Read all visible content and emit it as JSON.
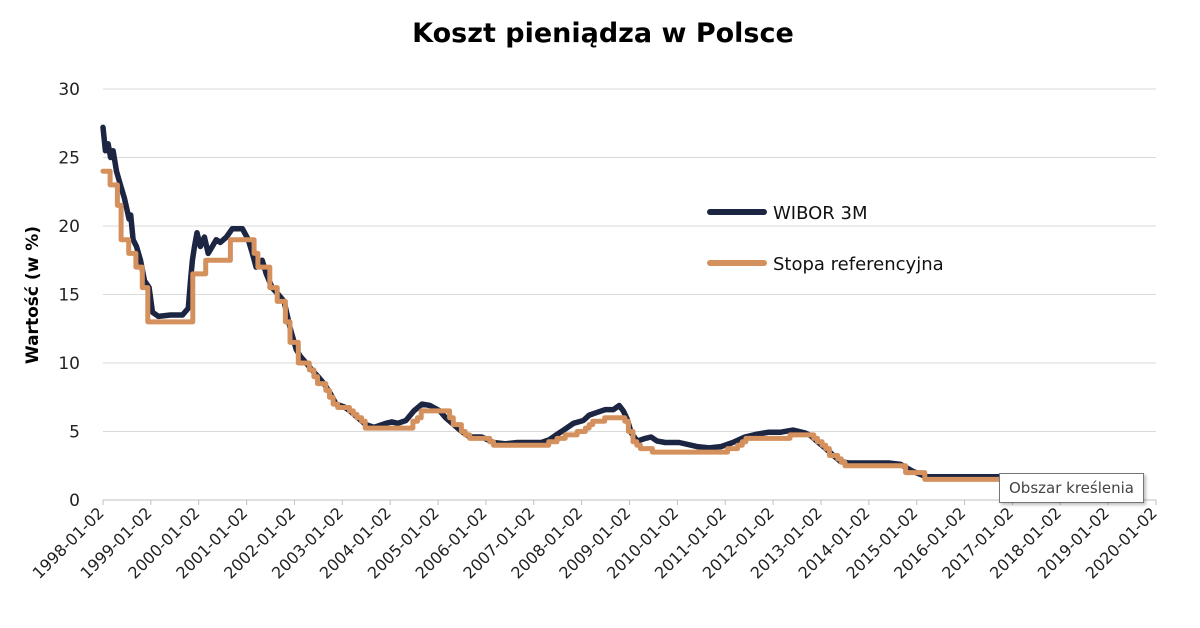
{
  "chart_data": {
    "type": "line",
    "title": "Koszt pieniądza w Polsce",
    "ylabel": "Wartość (w %)",
    "xlabel": "",
    "ylim": [
      0,
      30
    ],
    "yticks": [
      "0",
      "5",
      "10",
      "15",
      "20",
      "25",
      "30"
    ],
    "xticks": [
      "1998-01-02",
      "1999-01-02",
      "2000-01-02",
      "2001-01-02",
      "2002-01-02",
      "2003-01-02",
      "2004-01-02",
      "2005-01-02",
      "2006-01-02",
      "2007-01-02",
      "2008-01-02",
      "2009-01-02",
      "2010-01-02",
      "2011-01-02",
      "2012-01-02",
      "2013-01-02",
      "2014-01-02",
      "2015-01-02",
      "2016-01-02",
      "2017-01-02",
      "2018-01-02",
      "2019-01-02",
      "2020-01-02"
    ],
    "grid": true,
    "legend_position": "right",
    "series": [
      {
        "name": "WIBOR 3M",
        "color": "#1c2541",
        "points": [
          [
            "1998-01-02",
            27.2
          ],
          [
            "1998-01-20",
            25.5
          ],
          [
            "1998-02-10",
            26.0
          ],
          [
            "1998-03-01",
            25.0
          ],
          [
            "1998-03-20",
            25.5
          ],
          [
            "1998-04-15",
            24.0
          ],
          [
            "1998-05-15",
            23.0
          ],
          [
            "1998-06-15",
            22.0
          ],
          [
            "1998-07-20",
            20.5
          ],
          [
            "1998-08-01",
            20.8
          ],
          [
            "1998-08-20",
            19.0
          ],
          [
            "1998-09-15",
            18.5
          ],
          [
            "1998-10-15",
            17.5
          ],
          [
            "1998-11-15",
            16.0
          ],
          [
            "1998-12-20",
            15.5
          ],
          [
            "1999-01-15",
            13.7
          ],
          [
            "1999-03-01",
            13.4
          ],
          [
            "1999-06-01",
            13.5
          ],
          [
            "1999-09-01",
            13.5
          ],
          [
            "1999-10-15",
            14.0
          ],
          [
            "1999-11-01",
            16.0
          ],
          [
            "1999-11-15",
            17.5
          ],
          [
            "1999-12-01",
            18.5
          ],
          [
            "1999-12-20",
            19.5
          ],
          [
            "2000-01-15",
            18.5
          ],
          [
            "2000-02-15",
            19.2
          ],
          [
            "2000-03-15",
            18.0
          ],
          [
            "2000-04-15",
            18.5
          ],
          [
            "2000-05-15",
            19.0
          ],
          [
            "2000-06-15",
            18.8
          ],
          [
            "2000-08-01",
            19.2
          ],
          [
            "2000-09-15",
            19.8
          ],
          [
            "2000-12-01",
            19.8
          ],
          [
            "2001-01-15",
            19.0
          ],
          [
            "2001-02-15",
            18.0
          ],
          [
            "2001-03-15",
            17.0
          ],
          [
            "2001-05-01",
            17.5
          ],
          [
            "2001-06-01",
            16.5
          ],
          [
            "2001-07-15",
            15.5
          ],
          [
            "2001-09-01",
            15.0
          ],
          [
            "2001-10-15",
            14.5
          ],
          [
            "2001-12-01",
            12.5
          ],
          [
            "2002-01-15",
            11.0
          ],
          [
            "2002-02-15",
            10.5
          ],
          [
            "2002-04-01",
            10.0
          ],
          [
            "2002-05-15",
            9.5
          ],
          [
            "2002-07-01",
            9.0
          ],
          [
            "2002-08-15",
            8.5
          ],
          [
            "2002-10-01",
            7.8
          ],
          [
            "2002-11-15",
            7.0
          ],
          [
            "2003-01-15",
            6.8
          ],
          [
            "2003-03-01",
            6.5
          ],
          [
            "2003-05-01",
            6.0
          ],
          [
            "2003-07-01",
            5.5
          ],
          [
            "2003-09-01",
            5.3
          ],
          [
            "2003-12-01",
            5.6
          ],
          [
            "2004-01-15",
            5.7
          ],
          [
            "2004-03-01",
            5.6
          ],
          [
            "2004-05-01",
            5.8
          ],
          [
            "2004-07-01",
            6.5
          ],
          [
            "2004-09-01",
            7.0
          ],
          [
            "2004-11-01",
            6.9
          ],
          [
            "2005-01-15",
            6.5
          ],
          [
            "2005-03-01",
            6.0
          ],
          [
            "2005-05-01",
            5.5
          ],
          [
            "2005-07-01",
            5.0
          ],
          [
            "2005-09-01",
            4.6
          ],
          [
            "2005-12-01",
            4.6
          ],
          [
            "2006-03-01",
            4.2
          ],
          [
            "2006-06-01",
            4.1
          ],
          [
            "2006-09-01",
            4.2
          ],
          [
            "2006-12-01",
            4.2
          ],
          [
            "2007-03-01",
            4.2
          ],
          [
            "2007-05-01",
            4.4
          ],
          [
            "2007-07-01",
            4.8
          ],
          [
            "2007-09-01",
            5.2
          ],
          [
            "2007-11-01",
            5.6
          ],
          [
            "2008-01-15",
            5.8
          ],
          [
            "2008-03-01",
            6.2
          ],
          [
            "2008-05-01",
            6.4
          ],
          [
            "2008-07-01",
            6.6
          ],
          [
            "2008-09-01",
            6.6
          ],
          [
            "2008-10-15",
            6.9
          ],
          [
            "2008-11-15",
            6.5
          ],
          [
            "2008-12-15",
            5.9
          ],
          [
            "2009-01-15",
            4.9
          ],
          [
            "2009-03-01",
            4.3
          ],
          [
            "2009-05-01",
            4.5
          ],
          [
            "2009-06-15",
            4.6
          ],
          [
            "2009-08-01",
            4.3
          ],
          [
            "2009-10-01",
            4.2
          ],
          [
            "2010-01-15",
            4.2
          ],
          [
            "2010-06-01",
            3.9
          ],
          [
            "2010-09-01",
            3.8
          ],
          [
            "2010-12-01",
            3.9
          ],
          [
            "2011-03-01",
            4.2
          ],
          [
            "2011-06-01",
            4.6
          ],
          [
            "2011-09-01",
            4.8
          ],
          [
            "2011-12-01",
            4.95
          ],
          [
            "2012-03-01",
            4.95
          ],
          [
            "2012-06-01",
            5.1
          ],
          [
            "2012-09-01",
            4.9
          ],
          [
            "2012-10-15",
            4.7
          ],
          [
            "2012-12-01",
            4.3
          ],
          [
            "2013-02-01",
            3.8
          ],
          [
            "2013-04-01",
            3.3
          ],
          [
            "2013-06-01",
            2.8
          ],
          [
            "2013-08-01",
            2.7
          ],
          [
            "2014-01-15",
            2.7
          ],
          [
            "2014-06-01",
            2.7
          ],
          [
            "2014-09-01",
            2.6
          ],
          [
            "2014-12-01",
            2.1
          ],
          [
            "2015-03-15",
            1.7
          ],
          [
            "2015-09-01",
            1.7
          ],
          [
            "2016-06-01",
            1.7
          ],
          [
            "2017-01-02",
            1.7
          ],
          [
            "2017-06-01",
            1.7
          ]
        ]
      },
      {
        "name": "Stopa referencyjna",
        "color": "#d4915e",
        "points": [
          [
            "1998-01-02",
            24.0
          ],
          [
            "1998-02-25",
            24.0
          ],
          [
            "1998-02-25",
            23.0
          ],
          [
            "1998-04-22",
            23.0
          ],
          [
            "1998-04-22",
            21.5
          ],
          [
            "1998-05-20",
            21.5
          ],
          [
            "1998-05-20",
            19.0
          ],
          [
            "1998-07-17",
            19.0
          ],
          [
            "1998-07-17",
            18.0
          ],
          [
            "1998-09-10",
            18.0
          ],
          [
            "1998-09-10",
            17.0
          ],
          [
            "1998-10-29",
            17.0
          ],
          [
            "1998-10-29",
            15.5
          ],
          [
            "1998-12-10",
            15.5
          ],
          [
            "1998-12-10",
            13.0
          ],
          [
            "1999-11-18",
            13.0
          ],
          [
            "1999-11-18",
            16.5
          ],
          [
            "2000-02-25",
            16.5
          ],
          [
            "2000-02-25",
            17.5
          ],
          [
            "2000-08-31",
            17.5
          ],
          [
            "2000-08-31",
            19.0
          ],
          [
            "2001-02-28",
            19.0
          ],
          [
            "2001-02-28",
            18.0
          ],
          [
            "2001-03-29",
            18.0
          ],
          [
            "2001-03-29",
            17.0
          ],
          [
            "2001-06-28",
            17.0
          ],
          [
            "2001-06-28",
            15.5
          ],
          [
            "2001-08-23",
            15.5
          ],
          [
            "2001-08-23",
            14.5
          ],
          [
            "2001-10-25",
            14.5
          ],
          [
            "2001-10-25",
            13.0
          ],
          [
            "2001-11-29",
            13.0
          ],
          [
            "2001-11-29",
            11.5
          ],
          [
            "2002-01-31",
            11.5
          ],
          [
            "2002-01-31",
            10.0
          ],
          [
            "2002-04-25",
            10.0
          ],
          [
            "2002-04-25",
            9.5
          ],
          [
            "2002-05-30",
            9.5
          ],
          [
            "2002-05-30",
            9.0
          ],
          [
            "2002-06-27",
            9.0
          ],
          [
            "2002-06-27",
            8.5
          ],
          [
            "2002-08-29",
            8.5
          ],
          [
            "2002-08-29",
            8.0
          ],
          [
            "2002-09-26",
            8.0
          ],
          [
            "2002-09-26",
            7.5
          ],
          [
            "2002-10-24",
            7.5
          ],
          [
            "2002-10-24",
            7.0
          ],
          [
            "2002-11-28",
            7.0
          ],
          [
            "2002-11-28",
            6.75
          ],
          [
            "2003-02-26",
            6.75
          ],
          [
            "2003-02-26",
            6.5
          ],
          [
            "2003-03-27",
            6.5
          ],
          [
            "2003-03-27",
            6.25
          ],
          [
            "2003-04-24",
            6.25
          ],
          [
            "2003-04-24",
            6.0
          ],
          [
            "2003-05-29",
            6.0
          ],
          [
            "2003-05-29",
            5.75
          ],
          [
            "2003-06-26",
            5.75
          ],
          [
            "2003-06-26",
            5.25
          ],
          [
            "2004-06-24",
            5.25
          ],
          [
            "2004-06-24",
            5.75
          ],
          [
            "2004-07-29",
            5.75
          ],
          [
            "2004-07-29",
            6.0
          ],
          [
            "2004-08-26",
            6.0
          ],
          [
            "2004-08-26",
            6.5
          ],
          [
            "2005-03-31",
            6.5
          ],
          [
            "2005-03-31",
            6.0
          ],
          [
            "2005-04-28",
            6.0
          ],
          [
            "2005-04-28",
            5.5
          ],
          [
            "2005-06-29",
            5.5
          ],
          [
            "2005-06-29",
            5.0
          ],
          [
            "2005-07-28",
            5.0
          ],
          [
            "2005-07-28",
            4.75
          ],
          [
            "2005-08-31",
            4.75
          ],
          [
            "2005-08-31",
            4.5
          ],
          [
            "2006-01-31",
            4.5
          ],
          [
            "2006-01-31",
            4.25
          ],
          [
            "2006-03-01",
            4.25
          ],
          [
            "2006-03-01",
            4.0
          ],
          [
            "2007-04-26",
            4.0
          ],
          [
            "2007-04-26",
            4.25
          ],
          [
            "2007-06-28",
            4.25
          ],
          [
            "2007-06-28",
            4.5
          ],
          [
            "2007-08-30",
            4.5
          ],
          [
            "2007-08-30",
            4.75
          ],
          [
            "2007-11-29",
            4.75
          ],
          [
            "2007-11-29",
            5.0
          ],
          [
            "2008-01-31",
            5.0
          ],
          [
            "2008-01-31",
            5.25
          ],
          [
            "2008-02-28",
            5.25
          ],
          [
            "2008-02-28",
            5.5
          ],
          [
            "2008-03-27",
            5.5
          ],
          [
            "2008-03-27",
            5.75
          ],
          [
            "2008-06-26",
            5.75
          ],
          [
            "2008-06-26",
            6.0
          ],
          [
            "2008-11-27",
            6.0
          ],
          [
            "2008-11-27",
            5.75
          ],
          [
            "2008-12-24",
            5.75
          ],
          [
            "2008-12-24",
            5.0
          ],
          [
            "2009-01-28",
            5.0
          ],
          [
            "2009-01-28",
            4.25
          ],
          [
            "2009-02-26",
            4.25
          ],
          [
            "2009-02-26",
            4.0
          ],
          [
            "2009-03-26",
            4.0
          ],
          [
            "2009-03-26",
            3.75
          ],
          [
            "2009-06-25",
            3.75
          ],
          [
            "2009-06-25",
            3.5
          ],
          [
            "2011-01-20",
            3.5
          ],
          [
            "2011-01-20",
            3.75
          ],
          [
            "2011-04-06",
            3.75
          ],
          [
            "2011-04-06",
            4.0
          ],
          [
            "2011-05-12",
            4.0
          ],
          [
            "2011-05-12",
            4.25
          ],
          [
            "2011-06-09",
            4.25
          ],
          [
            "2011-06-09",
            4.5
          ],
          [
            "2012-05-10",
            4.5
          ],
          [
            "2012-05-10",
            4.75
          ],
          [
            "2012-11-08",
            4.75
          ],
          [
            "2012-11-08",
            4.5
          ],
          [
            "2012-12-06",
            4.5
          ],
          [
            "2012-12-06",
            4.25
          ],
          [
            "2013-01-10",
            4.25
          ],
          [
            "2013-01-10",
            4.0
          ],
          [
            "2013-02-07",
            4.0
          ],
          [
            "2013-02-07",
            3.75
          ],
          [
            "2013-03-07",
            3.75
          ],
          [
            "2013-03-07",
            3.25
          ],
          [
            "2013-05-09",
            3.25
          ],
          [
            "2013-05-09",
            3.0
          ],
          [
            "2013-06-06",
            3.0
          ],
          [
            "2013-06-06",
            2.75
          ],
          [
            "2013-07-04",
            2.75
          ],
          [
            "2013-07-04",
            2.5
          ],
          [
            "2014-10-09",
            2.5
          ],
          [
            "2014-10-09",
            2.0
          ],
          [
            "2015-03-05",
            2.0
          ],
          [
            "2015-03-05",
            1.5
          ],
          [
            "2017-06-01",
            1.5
          ]
        ]
      }
    ],
    "tooltip": "Obszar kreślenia"
  }
}
